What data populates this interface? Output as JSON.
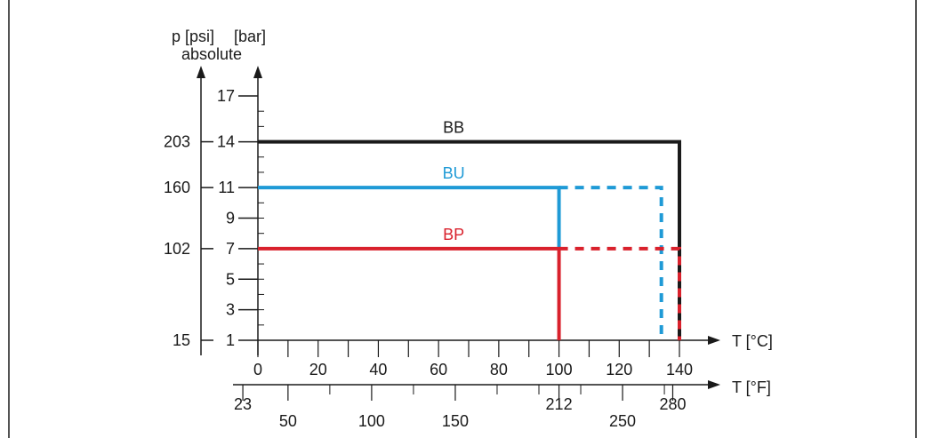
{
  "chart_data": {
    "type": "line",
    "left_axis": {
      "label_psi": "p [psi]",
      "label_bar": "[bar]",
      "label_sub": "absolute",
      "bar_ticks": [
        "1",
        "3",
        "5",
        "7",
        "9",
        "11",
        "14",
        "17"
      ],
      "bar_tick_values": [
        1,
        3,
        5,
        7,
        9,
        11,
        14,
        17
      ],
      "psi_ticks": [
        "15",
        "102",
        "160",
        "203"
      ],
      "psi_tick_bar_values": [
        1,
        7,
        11,
        14
      ],
      "bar_range": [
        1,
        17
      ]
    },
    "celsius_axis": {
      "label": "T [°C]",
      "ticks": [
        "0",
        "20",
        "40",
        "60",
        "80",
        "100",
        "120",
        "140"
      ],
      "tick_values": [
        0,
        20,
        40,
        60,
        80,
        100,
        120,
        140
      ],
      "range": [
        0,
        140
      ]
    },
    "fahrenheit_axis": {
      "label": "T [°F]",
      "ticks": [
        "23",
        "50",
        "100",
        "150",
        "212",
        "250",
        "280"
      ],
      "tick_values": [
        23,
        50,
        100,
        150,
        212,
        250,
        280
      ]
    },
    "series": [
      {
        "name": "BB",
        "color": "#1a1a1a",
        "solid": [
          [
            0,
            14
          ],
          [
            140,
            14
          ],
          [
            140,
            1
          ]
        ],
        "dashed": []
      },
      {
        "name": "BU",
        "color": "#1f9ad6",
        "solid": [
          [
            0,
            11
          ],
          [
            100,
            11
          ],
          [
            100,
            7
          ]
        ],
        "dashed": [
          [
            100,
            11
          ],
          [
            134,
            11
          ],
          [
            134,
            1
          ]
        ]
      },
      {
        "name": "BP",
        "color": "#d9212c",
        "solid": [
          [
            0,
            7
          ],
          [
            100,
            7
          ],
          [
            100,
            1
          ]
        ],
        "dashed": [
          [
            100,
            7
          ],
          [
            140,
            7
          ],
          [
            140,
            1
          ]
        ]
      }
    ],
    "grid": false,
    "legend": "inline-labels"
  }
}
